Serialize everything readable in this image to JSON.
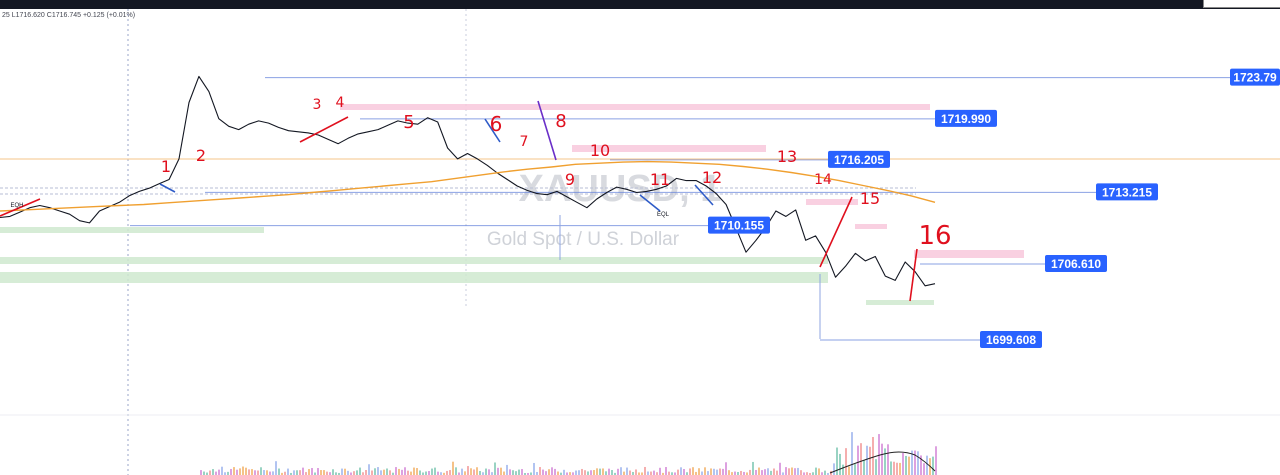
{
  "legend": {
    "text": "25 L1716.620 C1716.745 +0.125 (+0.01%)"
  },
  "watermark": {
    "symbol": "XAUUSD, 1",
    "description": "Gold Spot / U.S. Dollar"
  },
  "colors": {
    "price": "#131722",
    "ma": "#f0a030",
    "tag": "#2962ff",
    "hand": "#e0101e",
    "supply": "#f8c8dc",
    "demand": "#cfe9cf",
    "level": "#5a7ad8"
  },
  "chart_data": {
    "type": "line",
    "title": "",
    "symbol": "XAUUSD",
    "yunit": "USD",
    "price_tags": [
      "1723.79",
      "1719.990",
      "1716.205",
      "1713.215",
      "1710.155",
      "1706.610",
      "1699.608"
    ],
    "level_values": [
      1723.79,
      1719.99,
      1716.205,
      1713.215,
      1710.155,
      1706.61,
      1699.608
    ],
    "swing_labels": [
      "1",
      "2",
      "3",
      "4",
      "5",
      "6",
      "7",
      "8",
      "9",
      "10",
      "11",
      "12",
      "13",
      "14",
      "15",
      "16"
    ],
    "small_labels": [
      "EQH",
      "EQL"
    ],
    "series": [
      {
        "values": [
          1710.9,
          1711.0,
          1711.4,
          1711.8,
          1712.0,
          1711.8,
          1711.5,
          1711.2,
          1710.6,
          1710.4,
          1711.5,
          1711.9,
          1712.3,
          1712.9,
          1713.3,
          1713.6,
          1714.0,
          1714.4,
          1716.3,
          1721.5,
          1723.9,
          1722.5,
          1720.0,
          1719.3,
          1719.0,
          1719.5,
          1719.8,
          1719.6,
          1719.2,
          1718.9,
          1718.8,
          1718.7,
          1718.5,
          1718.1,
          1717.7,
          1718.2,
          1718.6,
          1718.8,
          1719.0,
          1719.4,
          1719.8,
          1719.6,
          1719.5,
          1720.1,
          1719.7,
          1717.3,
          1716.3,
          1716.8,
          1716.3,
          1715.7,
          1715.0,
          1714.4,
          1713.8,
          1713.4,
          1713.1,
          1713.0,
          1713.3,
          1712.8,
          1712.3,
          1711.8,
          1712.6,
          1713.2,
          1713.7,
          1713.5,
          1713.2,
          1713.3,
          1713.5,
          1713.8,
          1714.5,
          1714.3,
          1714.3,
          1713.8,
          1713.1,
          1712.1,
          1709.9,
          1707.7,
          1708.8,
          1710.0,
          1711.5,
          1711.0,
          1711.6,
          1708.8,
          1709.2,
          1707.7,
          1705.4,
          1706.4,
          1707.6,
          1706.9,
          1707.3,
          1705.5,
          1705.1,
          1706.8,
          1705.9,
          1704.6,
          1704.8
        ]
      },
      {
        "values": [
          1711.5,
          1711.6,
          1711.7,
          1711.8,
          1711.9,
          1712.0,
          1712.1,
          1712.25,
          1712.4,
          1712.55,
          1712.7,
          1712.85,
          1713.0,
          1713.2,
          1713.4,
          1713.6,
          1713.8,
          1714.0,
          1714.2,
          1714.5,
          1714.8,
          1715.1,
          1715.35,
          1715.55,
          1715.8,
          1715.9,
          1716.0,
          1716.05,
          1716.0,
          1715.9,
          1715.8,
          1715.6,
          1715.35,
          1715.05,
          1714.7,
          1714.3,
          1713.85,
          1713.4,
          1712.9,
          1712.3
        ]
      }
    ]
  }
}
